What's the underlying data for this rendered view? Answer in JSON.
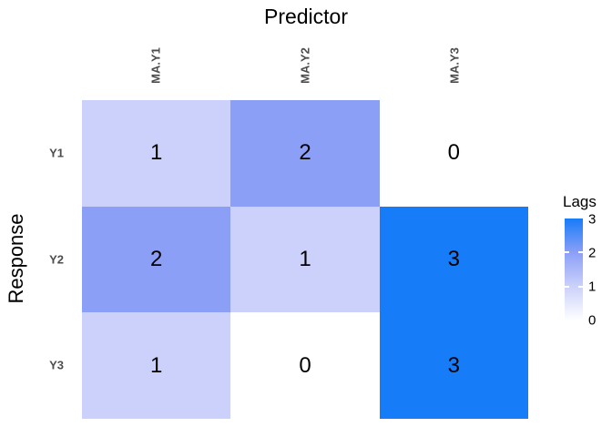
{
  "chart_data": {
    "type": "heatmap",
    "xlabel": "Predictor",
    "ylabel": "Response",
    "x_categories": [
      "MA.Y1",
      "MA.Y2",
      "MA.Y3"
    ],
    "y_categories": [
      "Y1",
      "Y2",
      "Y3"
    ],
    "matrix": [
      [
        1,
        2,
        0
      ],
      [
        2,
        1,
        3
      ],
      [
        1,
        0,
        3
      ]
    ],
    "legend": {
      "title": "Lags",
      "min": 0,
      "max": 3,
      "ticks": [
        "3",
        "2",
        "1",
        "0"
      ],
      "position": "right"
    },
    "palette": {
      "0": "#FFFFFF",
      "1": "#CBD1FA",
      "2": "#8B9FF7",
      "3": "#177CF8"
    },
    "grid": "off",
    "cell_text_color": "#000000",
    "axis_text_color": "#4d4d4d"
  }
}
